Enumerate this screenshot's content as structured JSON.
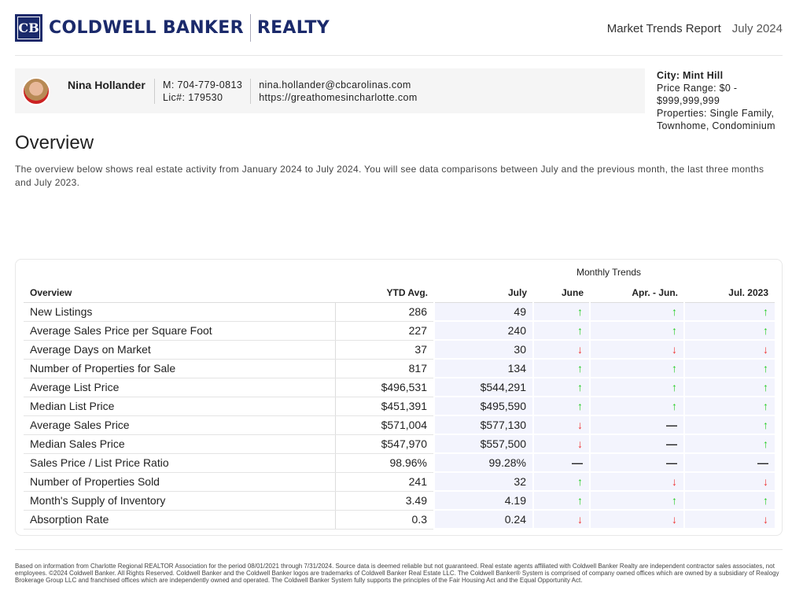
{
  "brand": {
    "name": "COLDWELL BANKER",
    "sub": "REALTY",
    "mark": "CB"
  },
  "report": {
    "title": "Market Trends Report",
    "date": "July 2024"
  },
  "agent": {
    "name": "Nina Hollander",
    "mobile": "M: 704-779-0813",
    "license": "Lic#: 179530",
    "email": "nina.hollander@cbcarolinas.com",
    "website": "https://greathomesincharlotte.com"
  },
  "filters": {
    "city": "City: Mint Hill",
    "price": "Price Range: $0 - $999,999,999",
    "properties": "Properties: Single Family, Townhome, Condominium"
  },
  "overview": {
    "title": "Overview",
    "description": "The overview below shows real estate activity from January 2024 to July 2024. You will see data comparisons between July and the previous month, the last three months and July 2023."
  },
  "table": {
    "group_header": "Monthly Trends",
    "headers": [
      "Overview",
      "YTD Avg.",
      "July",
      "June",
      "Apr. - Jun.",
      "Jul. 2023"
    ],
    "rows": [
      [
        "New Listings",
        "286",
        "49",
        "up",
        "up",
        "up"
      ],
      [
        "Average Sales Price per Square Foot",
        "227",
        "240",
        "up",
        "up",
        "up"
      ],
      [
        "Average Days on Market",
        "37",
        "30",
        "down",
        "down",
        "down"
      ],
      [
        "Number of Properties for Sale",
        "817",
        "134",
        "up",
        "up",
        "up"
      ],
      [
        "Average List Price",
        "$496,531",
        "$544,291",
        "up",
        "up",
        "up"
      ],
      [
        "Median List Price",
        "$451,391",
        "$495,590",
        "up",
        "up",
        "up"
      ],
      [
        "Average Sales Price",
        "$571,004",
        "$577,130",
        "down",
        "flat",
        "up"
      ],
      [
        "Median Sales Price",
        "$547,970",
        "$557,500",
        "down",
        "flat",
        "up"
      ],
      [
        "Sales Price / List Price Ratio",
        "98.96%",
        "99.28%",
        "flat",
        "flat",
        "flat"
      ],
      [
        "Number of Properties Sold",
        "241",
        "32",
        "up",
        "down",
        "down"
      ],
      [
        "Month's Supply of Inventory",
        "3.49",
        "4.19",
        "up",
        "up",
        "up"
      ],
      [
        "Absorption Rate",
        "0.3",
        "0.24",
        "down",
        "down",
        "down"
      ]
    ]
  },
  "colors": {
    "brand": "#1b2a6b",
    "up": "#22cc22",
    "down": "#ee3333"
  },
  "footer": "Based on information from Charlotte Regional REALTOR Association for the period 08/01/2021 through 7/31/2024. Source data is deemed reliable but not guaranteed. Real estate agents affiliated with Coldwell Banker Realty are independent contractor sales associates, not employees. ©2024 Coldwell Banker. All Rights Reserved. Coldwell Banker and the Coldwell Banker logos are trademarks of Coldwell Banker Real Estate LLC. The Coldwell Banker® System is comprised of company owned offices which are owned by a subsidiary of Realogy Brokerage Group LLC and franchised offices which are independently owned and operated. The Coldwell Banker System fully supports the principles of the Fair Housing Act and the Equal Opportunity Act."
}
